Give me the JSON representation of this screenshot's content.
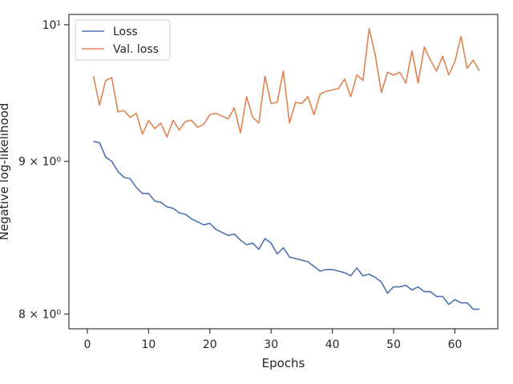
{
  "chart_data": {
    "type": "line",
    "xlabel": "Epochs",
    "ylabel": "Negative log-likelihood",
    "yscale": "log",
    "xlim": [
      -3,
      67
    ],
    "ylim": [
      7.91,
      10.08
    ],
    "x_ticks": [
      0,
      10,
      20,
      30,
      40,
      50,
      60
    ],
    "x_tick_labels": [
      "0",
      "10",
      "20",
      "30",
      "40",
      "50",
      "60"
    ],
    "y_ticks": [
      8,
      9,
      10
    ],
    "y_tick_labels": [
      "8 × 10⁰",
      "9 × 10⁰",
      "10¹"
    ],
    "grid": false,
    "legend_position": "top-left",
    "series": [
      {
        "name": "Loss",
        "color": "#4c72b0",
        "x": [
          1,
          2,
          3,
          4,
          5,
          6,
          7,
          8,
          9,
          10,
          11,
          12,
          13,
          14,
          15,
          16,
          17,
          18,
          19,
          20,
          21,
          22,
          23,
          24,
          25,
          26,
          27,
          28,
          29,
          30,
          31,
          32,
          33,
          34,
          35,
          36,
          37,
          38,
          39,
          40,
          41,
          42,
          43,
          44,
          45,
          46,
          47,
          48,
          49,
          50,
          51,
          52,
          53,
          54,
          55,
          56,
          57,
          58,
          59,
          60,
          61,
          62,
          63,
          64
        ],
        "values": [
          9.14,
          9.13,
          9.03,
          9.0,
          8.93,
          8.89,
          8.88,
          8.82,
          8.78,
          8.78,
          8.73,
          8.72,
          8.69,
          8.68,
          8.65,
          8.64,
          8.61,
          8.59,
          8.57,
          8.58,
          8.54,
          8.52,
          8.5,
          8.51,
          8.47,
          8.44,
          8.45,
          8.41,
          8.48,
          8.45,
          8.38,
          8.42,
          8.36,
          8.35,
          8.34,
          8.33,
          8.3,
          8.27,
          8.28,
          8.28,
          8.27,
          8.26,
          8.24,
          8.29,
          8.24,
          8.25,
          8.23,
          8.2,
          8.13,
          8.17,
          8.17,
          8.18,
          8.15,
          8.17,
          8.14,
          8.14,
          8.11,
          8.11,
          8.06,
          8.09,
          8.07,
          8.07,
          8.03,
          8.03
        ]
      },
      {
        "name": "Val. loss",
        "color": "#dd8452",
        "x": [
          1,
          2,
          3,
          4,
          5,
          6,
          7,
          8,
          9,
          10,
          11,
          12,
          13,
          14,
          15,
          16,
          17,
          18,
          19,
          20,
          21,
          22,
          23,
          24,
          25,
          26,
          27,
          28,
          29,
          30,
          31,
          32,
          33,
          34,
          35,
          36,
          37,
          38,
          39,
          40,
          41,
          42,
          43,
          44,
          45,
          46,
          47,
          48,
          49,
          50,
          51,
          52,
          53,
          54,
          55,
          56,
          57,
          58,
          59,
          60,
          61,
          62,
          63,
          64
        ],
        "values": [
          9.61,
          9.4,
          9.58,
          9.6,
          9.35,
          9.36,
          9.31,
          9.34,
          9.19,
          9.29,
          9.23,
          9.27,
          9.17,
          9.29,
          9.22,
          9.28,
          9.29,
          9.24,
          9.26,
          9.33,
          9.34,
          9.32,
          9.3,
          9.38,
          9.2,
          9.46,
          9.31,
          9.27,
          9.61,
          9.41,
          9.42,
          9.65,
          9.27,
          9.42,
          9.41,
          9.46,
          9.33,
          9.48,
          9.5,
          9.51,
          9.52,
          9.59,
          9.46,
          9.62,
          9.58,
          9.97,
          9.77,
          9.49,
          9.64,
          9.62,
          9.64,
          9.56,
          9.8,
          9.56,
          9.83,
          9.73,
          9.65,
          9.76,
          9.62,
          9.72,
          9.91,
          9.67,
          9.73,
          9.65
        ]
      }
    ]
  }
}
